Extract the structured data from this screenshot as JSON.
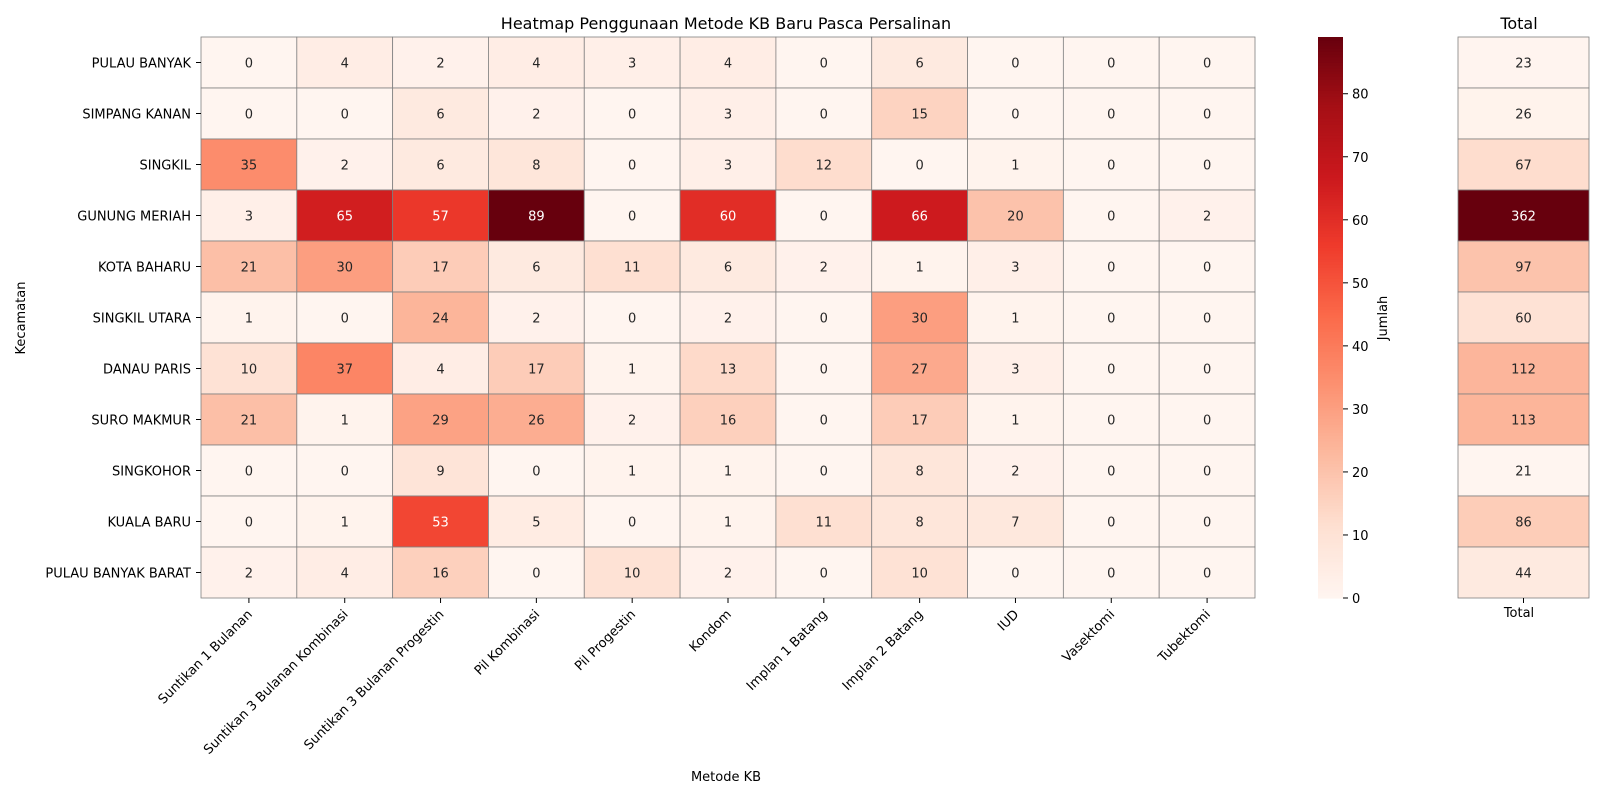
{
  "chart_data": [
    {
      "type": "heatmap",
      "title": "Heatmap Penggunaan Metode KB Baru Pasca Persalinan",
      "xlabel": "Metode KB",
      "ylabel": "Kecamatan",
      "columns": [
        "Suntikan 1 Bulanan",
        "Suntikan 3 Bulanan Kombinasi",
        "Suntikan 3 Bulanan Progestin",
        "Pil Kombinasi",
        "Pil Progestin",
        "Kondom",
        "Implan 1 Batang",
        "Implan 2 Batang",
        "IUD",
        "Vasektomi",
        "Tubektomi"
      ],
      "rows": [
        "PULAU BANYAK",
        "SIMPANG KANAN",
        "SINGKIL",
        "GUNUNG MERIAH",
        "KOTA BAHARU",
        "SINGKIL UTARA",
        "DANAU PARIS",
        "SURO MAKMUR",
        "SINGKOHOR",
        "KUALA BARU",
        "PULAU BANYAK BARAT"
      ],
      "values": [
        [
          0,
          4,
          2,
          4,
          3,
          4,
          0,
          6,
          0,
          0,
          0
        ],
        [
          0,
          0,
          6,
          2,
          0,
          3,
          0,
          15,
          0,
          0,
          0
        ],
        [
          35,
          2,
          6,
          8,
          0,
          3,
          12,
          0,
          1,
          0,
          0
        ],
        [
          3,
          65,
          57,
          89,
          0,
          60,
          0,
          66,
          20,
          0,
          2
        ],
        [
          21,
          30,
          17,
          6,
          11,
          6,
          2,
          1,
          3,
          0,
          0
        ],
        [
          1,
          0,
          24,
          2,
          0,
          2,
          0,
          30,
          1,
          0,
          0
        ],
        [
          10,
          37,
          4,
          17,
          1,
          13,
          0,
          27,
          3,
          0,
          0
        ],
        [
          21,
          1,
          29,
          26,
          2,
          16,
          0,
          17,
          1,
          0,
          0
        ],
        [
          0,
          0,
          9,
          0,
          1,
          1,
          0,
          8,
          2,
          0,
          0
        ],
        [
          0,
          1,
          53,
          5,
          0,
          1,
          11,
          8,
          7,
          0,
          0
        ],
        [
          2,
          4,
          16,
          0,
          10,
          2,
          0,
          10,
          0,
          0,
          0
        ]
      ],
      "colorbar": {
        "label": "Jumlah",
        "ticks": [
          0,
          10,
          20,
          30,
          40,
          50,
          60,
          70,
          80
        ],
        "range": [
          0,
          89
        ]
      },
      "colormap": "Reds"
    },
    {
      "type": "heatmap",
      "title": "Total",
      "columns": [
        "Total"
      ],
      "rows": [
        "PULAU BANYAK",
        "SIMPANG KANAN",
        "SINGKIL",
        "GUNUNG MERIAH",
        "KOTA BAHARU",
        "SINGKIL UTARA",
        "DANAU PARIS",
        "SURO MAKMUR",
        "SINGKOHOR",
        "KUALA BARU",
        "PULAU BANYAK BARAT"
      ],
      "values": [
        23,
        26,
        67,
        362,
        97,
        60,
        112,
        113,
        21,
        86,
        44
      ],
      "range": [
        21,
        362
      ],
      "colormap": "Reds"
    }
  ]
}
